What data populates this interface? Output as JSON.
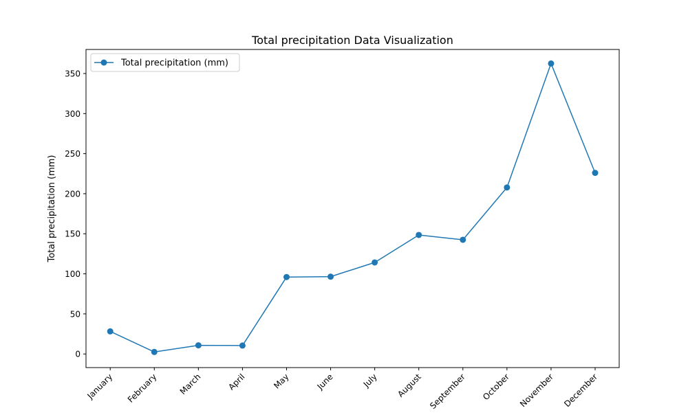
{
  "chart_data": {
    "type": "line",
    "title": "Total precipitation Data Visualization",
    "xlabel": "",
    "ylabel": "Total precipitation (mm)",
    "categories": [
      "January",
      "February",
      "March",
      "April",
      "May",
      "June",
      "July",
      "August",
      "September",
      "October",
      "November",
      "December"
    ],
    "series": [
      {
        "name": "Total precipitation (mm)",
        "values": [
          28.2,
          2.5,
          10.8,
          10.5,
          96.0,
          96.5,
          114.2,
          148.5,
          142.5,
          207.8,
          362.5,
          226.0
        ],
        "color": "#1f77b4",
        "marker": "circle"
      }
    ],
    "ylim": [
      -17,
      380
    ],
    "yticks": [
      0,
      50,
      100,
      150,
      200,
      250,
      300,
      350
    ],
    "ytick_labels": [
      "0",
      "50",
      "100",
      "150",
      "200",
      "250",
      "300",
      "350"
    ],
    "grid": false,
    "legend": {
      "position": "top-left"
    },
    "xtick_rotation": 45
  }
}
